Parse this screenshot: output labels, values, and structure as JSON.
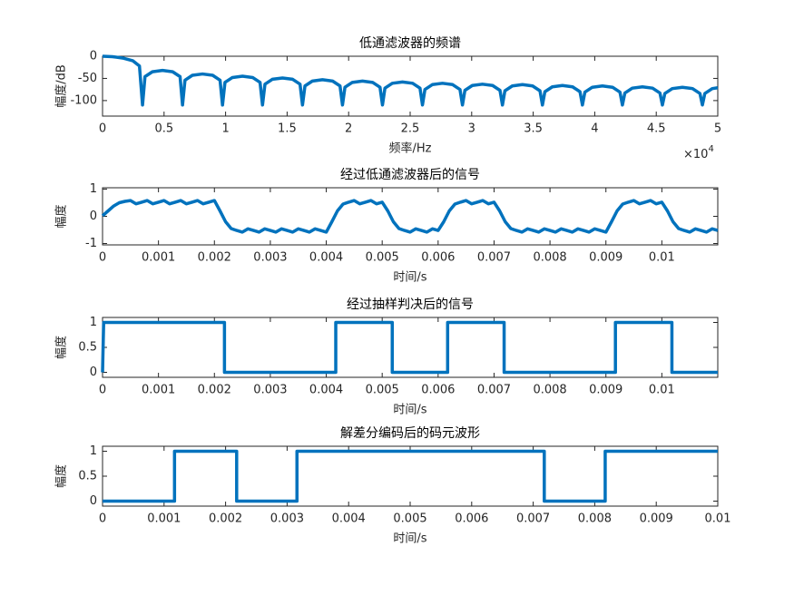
{
  "chart_data": [
    {
      "type": "line",
      "title": "低通滤波器的频谱",
      "xlabel": "频率/Hz",
      "ylabel": "幅度/dB",
      "x_exponent": {
        "base": "×10",
        "power": "4"
      },
      "xlim": [
        0,
        50000
      ],
      "ylim": [
        -135,
        0
      ],
      "xticks": [
        0,
        {
          "value": 5000,
          "label": "0.5"
        },
        {
          "value": 10000,
          "label": "1"
        },
        {
          "value": 15000,
          "label": "1.5"
        },
        {
          "value": 20000,
          "label": "2"
        },
        {
          "value": 25000,
          "label": "2.5"
        },
        {
          "value": 30000,
          "label": "3"
        },
        {
          "value": 35000,
          "label": "3.5"
        },
        {
          "value": 40000,
          "label": "4"
        },
        {
          "value": 45000,
          "label": "4.5"
        },
        {
          "value": 50000,
          "label": "5"
        }
      ],
      "yticks": [
        0,
        -50,
        -100
      ],
      "grid": false,
      "series": [
        {
          "color": "#0072BD",
          "x": [
            0,
            800,
            1625,
            2450,
            3000,
            3250,
            3450,
            4050,
            4875,
            5700,
            6300,
            6500,
            6700,
            7300,
            8125,
            8950,
            9550,
            9750,
            9950,
            10550,
            11375,
            12200,
            12800,
            13000,
            13200,
            13800,
            14625,
            15450,
            16050,
            16250,
            16450,
            17050,
            17875,
            18700,
            19300,
            19500,
            19700,
            20300,
            21125,
            21950,
            22550,
            22750,
            22950,
            23550,
            24375,
            25200,
            25800,
            26000,
            26200,
            26800,
            27625,
            28450,
            29050,
            29250,
            29450,
            30050,
            30875,
            31700,
            32300,
            32500,
            32700,
            33300,
            34125,
            34950,
            35550,
            35750,
            35950,
            36550,
            37375,
            38200,
            38800,
            39000,
            39200,
            39800,
            40625,
            41450,
            42050,
            42250,
            42450,
            43050,
            43875,
            44700,
            45300,
            45500,
            45700,
            46300,
            47125,
            47950,
            48550,
            48750,
            48950,
            49550,
            50000
          ],
          "values": [
            0,
            -1,
            -4,
            -10,
            -22,
            -110,
            -46,
            -35,
            -32,
            -35,
            -46,
            -110,
            -54,
            -43,
            -40,
            -43,
            -54,
            -110,
            -59,
            -48,
            -45,
            -48,
            -59,
            -110,
            -63,
            -52,
            -49,
            -52,
            -63,
            -110,
            -67,
            -56,
            -53,
            -56,
            -67,
            -110,
            -70,
            -59,
            -56,
            -59,
            -70,
            -110,
            -72,
            -61,
            -58,
            -61,
            -72,
            -110,
            -75,
            -64,
            -61,
            -64,
            -75,
            -110,
            -77,
            -66,
            -63,
            -66,
            -77,
            -110,
            -78,
            -67,
            -64,
            -67,
            -78,
            -110,
            -80,
            -69,
            -66,
            -69,
            -80,
            -110,
            -81,
            -70,
            -67,
            -70,
            -81,
            -110,
            -83,
            -72,
            -69,
            -72,
            -83,
            -110,
            -84,
            -73,
            -70,
            -73,
            -84,
            -110,
            -84,
            -73,
            -71
          ]
        }
      ]
    },
    {
      "type": "line",
      "title": "经过低通滤波器后的信号",
      "xlabel": "时间/s",
      "ylabel": "幅度",
      "xlim": [
        0,
        0.011
      ],
      "ylim": [
        -1.05,
        1.05
      ],
      "xticks": [
        0,
        0.001,
        0.002,
        0.003,
        0.004,
        0.005,
        0.006,
        0.007,
        0.008,
        0.009,
        0.01
      ],
      "yticks": [
        -1,
        0,
        1
      ],
      "grid": false,
      "series": [
        {
          "color": "#0072BD",
          "x": [
            0,
            0.0001,
            0.0002,
            0.0003,
            0.0004,
            0.0005,
            0.0006,
            0.0007,
            0.0008,
            0.0009,
            0.001,
            0.0011,
            0.0012,
            0.0013,
            0.0014,
            0.0015,
            0.0016,
            0.0017,
            0.0018,
            0.0019,
            0.002,
            0.0021,
            0.0022,
            0.0023,
            0.0024,
            0.0025,
            0.0026,
            0.0027,
            0.0028,
            0.0029,
            0.003,
            0.0031,
            0.0032,
            0.0033,
            0.0034,
            0.0035,
            0.0036,
            0.0037,
            0.0038,
            0.0039,
            0.004,
            0.0041,
            0.0042,
            0.0043,
            0.0044,
            0.0045,
            0.0046,
            0.0047,
            0.0048,
            0.0049,
            0.005,
            0.0051,
            0.0052,
            0.0053,
            0.0054,
            0.0055,
            0.0056,
            0.0057,
            0.0058,
            0.0059,
            0.006,
            0.0061,
            0.0062,
            0.0063,
            0.0064,
            0.0065,
            0.0066,
            0.0067,
            0.0068,
            0.0069,
            0.007,
            0.0071,
            0.0072,
            0.0073,
            0.0074,
            0.0075,
            0.0076,
            0.0077,
            0.0078,
            0.0079,
            0.008,
            0.0081,
            0.0082,
            0.0083,
            0.0084,
            0.0085,
            0.0086,
            0.0087,
            0.0088,
            0.0089,
            0.009,
            0.0091,
            0.0092,
            0.0093,
            0.0094,
            0.0095,
            0.0096,
            0.0097,
            0.0098,
            0.0099,
            0.01,
            0.0101,
            0.0102,
            0.0103,
            0.0104,
            0.0105,
            0.0106,
            0.0107,
            0.0108,
            0.0109,
            0.011
          ],
          "values": [
            0.02,
            0.2,
            0.38,
            0.5,
            0.55,
            0.58,
            0.46,
            0.52,
            0.58,
            0.46,
            0.52,
            0.58,
            0.46,
            0.52,
            0.58,
            0.46,
            0.52,
            0.58,
            0.46,
            0.52,
            0.58,
            0.2,
            -0.2,
            -0.45,
            -0.52,
            -0.58,
            -0.46,
            -0.52,
            -0.58,
            -0.46,
            -0.52,
            -0.58,
            -0.46,
            -0.52,
            -0.58,
            -0.46,
            -0.52,
            -0.58,
            -0.46,
            -0.52,
            -0.58,
            -0.2,
            0.2,
            0.45,
            0.52,
            0.58,
            0.46,
            0.52,
            0.58,
            0.46,
            0.52,
            0.2,
            -0.2,
            -0.45,
            -0.52,
            -0.58,
            -0.46,
            -0.52,
            -0.58,
            -0.46,
            -0.52,
            -0.2,
            0.2,
            0.45,
            0.52,
            0.58,
            0.46,
            0.52,
            0.58,
            0.46,
            0.52,
            0.2,
            -0.2,
            -0.45,
            -0.52,
            -0.58,
            -0.46,
            -0.52,
            -0.58,
            -0.46,
            -0.52,
            -0.58,
            -0.46,
            -0.52,
            -0.58,
            -0.46,
            -0.52,
            -0.58,
            -0.46,
            -0.52,
            -0.58,
            -0.2,
            0.2,
            0.45,
            0.52,
            0.58,
            0.46,
            0.52,
            0.58,
            0.46,
            0.52,
            0.2,
            -0.2,
            -0.45,
            -0.52,
            -0.58,
            -0.46,
            -0.52,
            -0.58,
            -0.46,
            -0.52
          ]
        }
      ]
    },
    {
      "type": "line",
      "title": "经过抽样判决后的信号",
      "xlabel": "时间/s",
      "ylabel": "幅度",
      "xlim": [
        0,
        0.011
      ],
      "ylim": [
        -0.1,
        1.1
      ],
      "xticks": [
        0,
        0.001,
        0.002,
        0.003,
        0.004,
        0.005,
        0.006,
        0.007,
        0.008,
        0.009,
        0.01
      ],
      "yticks": [
        0,
        0.5,
        1
      ],
      "grid": false,
      "series": [
        {
          "color": "#0072BD",
          "x": [
            0,
            2e-05,
            0.00218,
            0.00218,
            0.00417,
            0.00417,
            0.00518,
            0.00518,
            0.00617,
            0.00617,
            0.00718,
            0.00718,
            0.00917,
            0.00917,
            0.01018,
            0.01018,
            0.011
          ],
          "values": [
            0,
            1,
            1,
            0,
            0,
            1,
            1,
            0,
            0,
            1,
            1,
            0,
            0,
            1,
            1,
            0,
            0
          ]
        }
      ]
    },
    {
      "type": "line",
      "title": "解差分编码后的码元波形",
      "xlabel": "时间/s",
      "ylabel": "幅度",
      "xlim": [
        0,
        0.01
      ],
      "ylim": [
        -0.1,
        1.1
      ],
      "xticks": [
        0,
        0.001,
        0.002,
        0.003,
        0.004,
        0.005,
        0.006,
        0.007,
        0.008,
        0.009,
        0.01
      ],
      "yticks": [
        0,
        0.5,
        1
      ],
      "grid": false,
      "series": [
        {
          "color": "#0072BD",
          "x": [
            0,
            0.00117,
            0.00117,
            0.00218,
            0.00218,
            0.00316,
            0.00316,
            0.00718,
            0.00718,
            0.00817,
            0.00817,
            0.01
          ],
          "values": [
            0,
            0,
            1,
            1,
            0,
            0,
            1,
            1,
            0,
            0,
            1,
            1
          ]
        }
      ]
    }
  ]
}
